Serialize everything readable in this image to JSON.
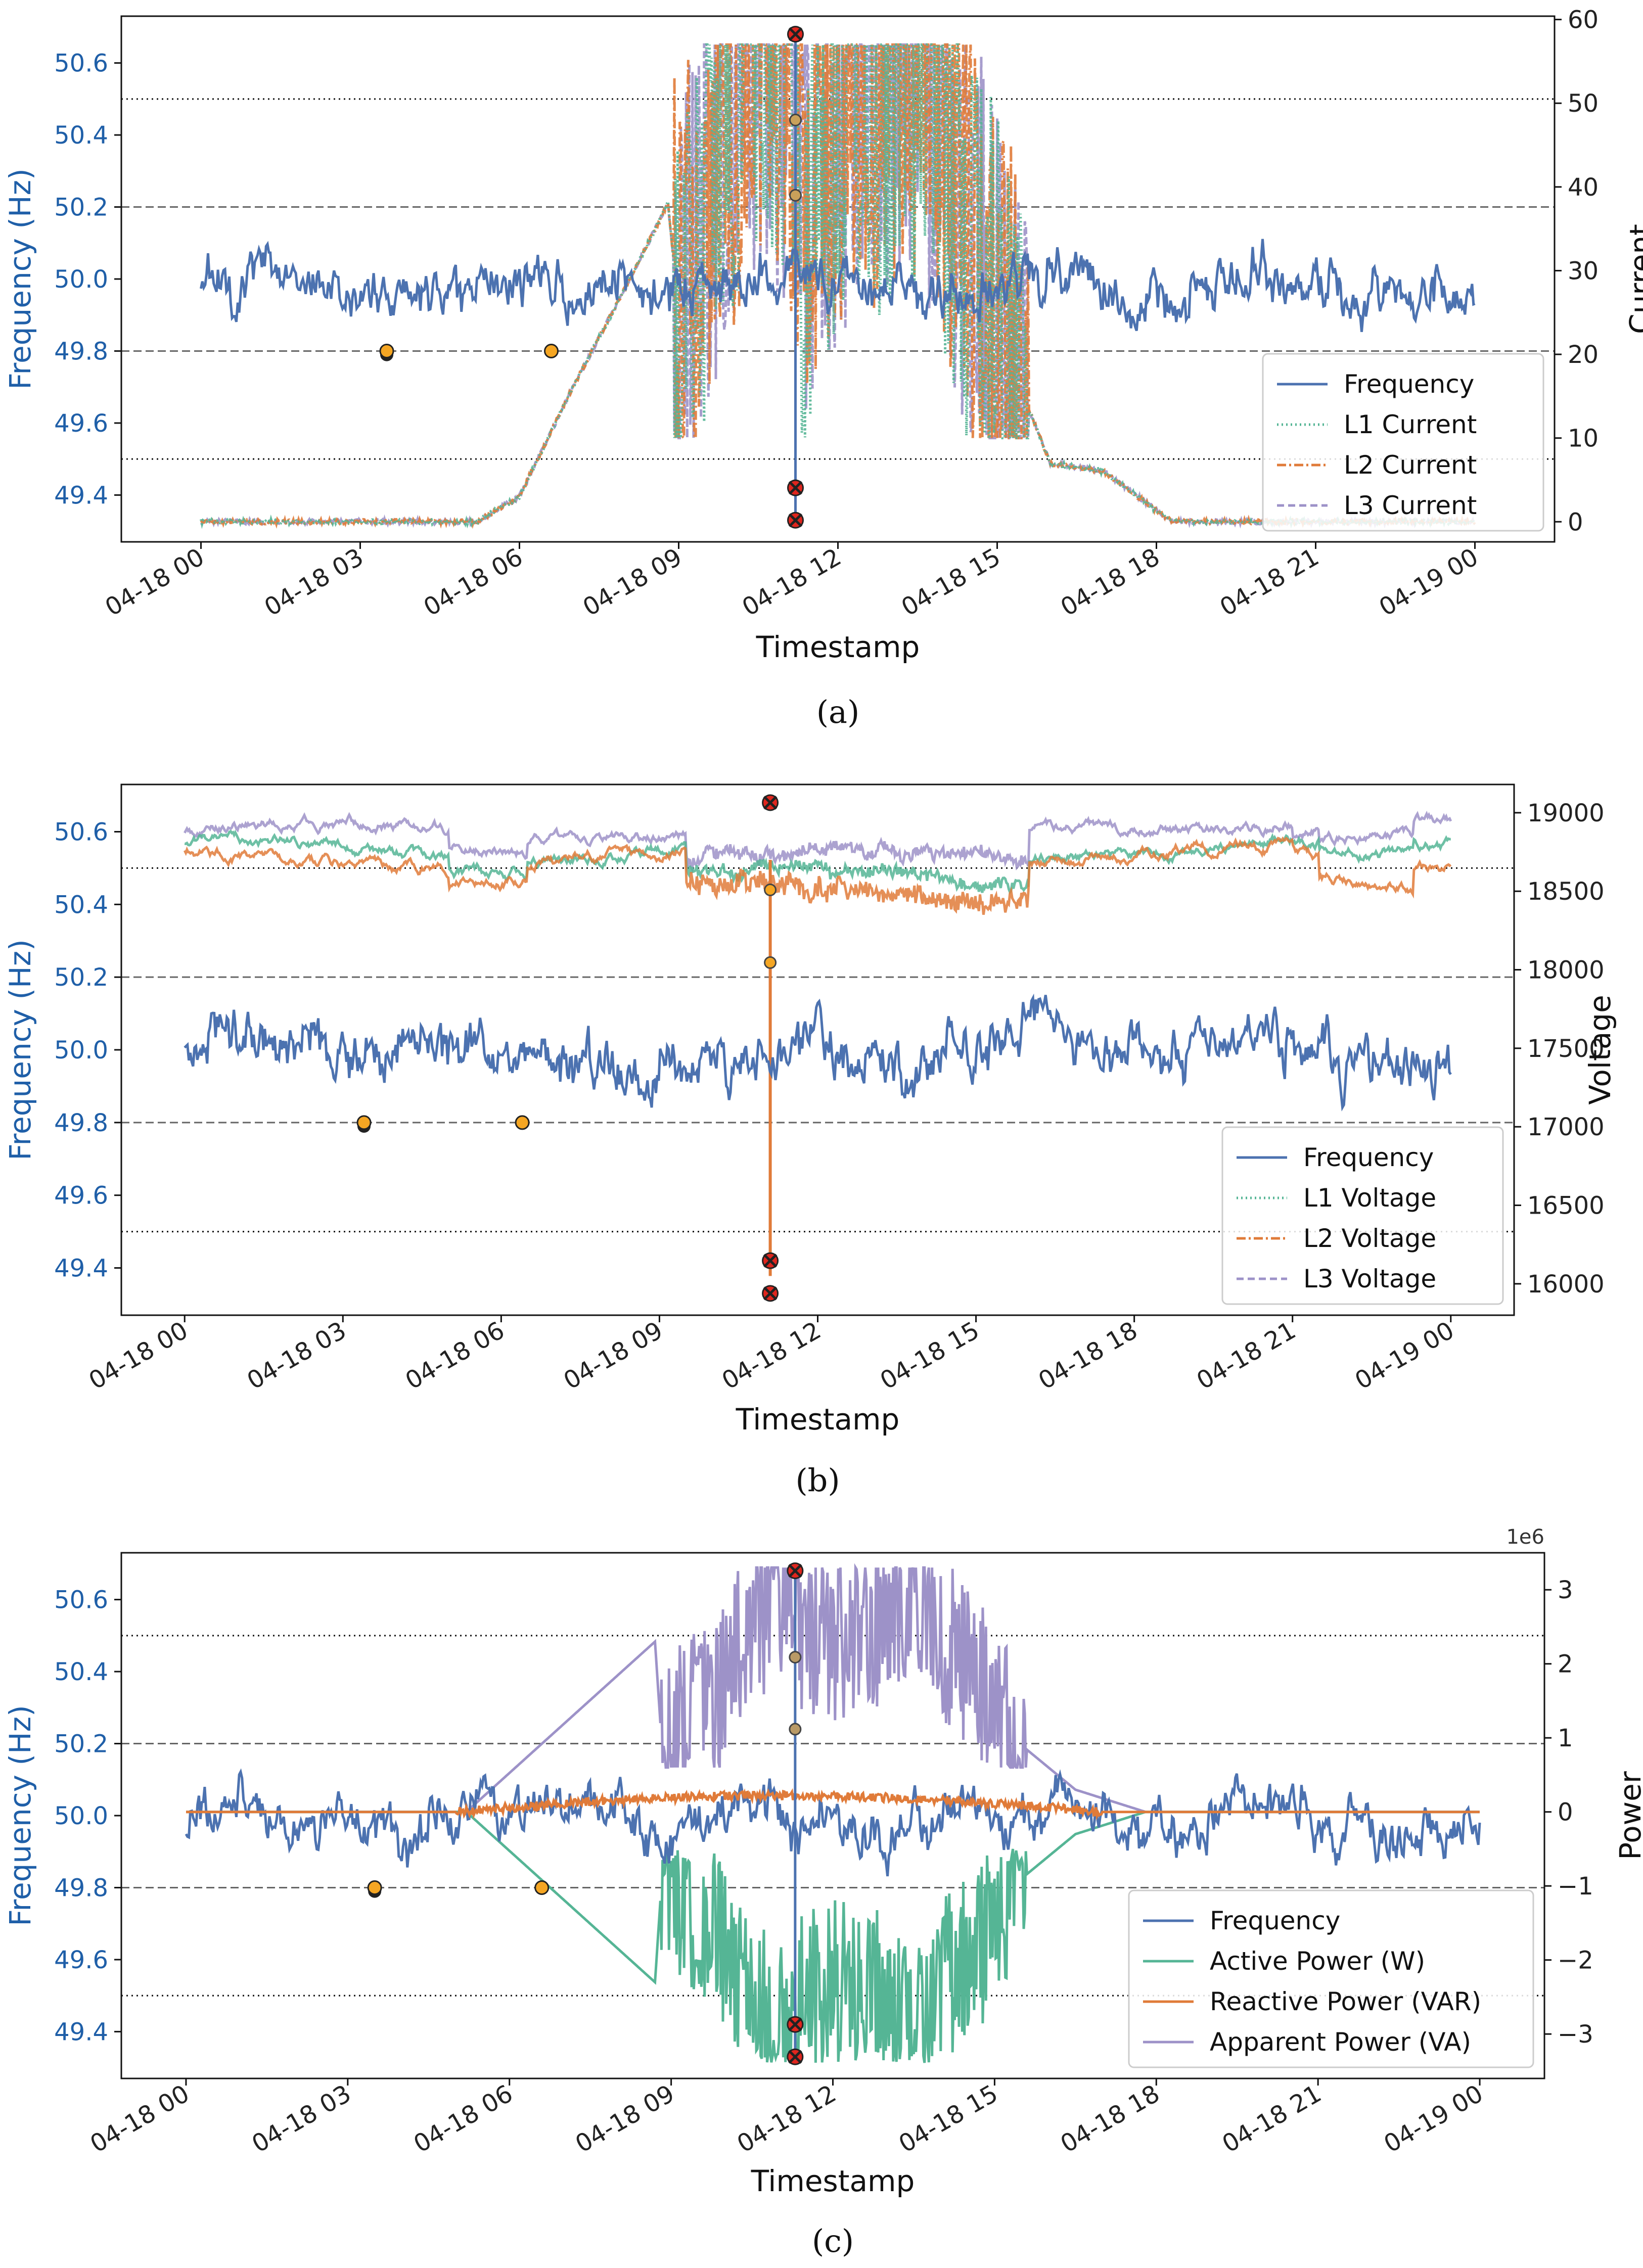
{
  "chart_data": [
    {
      "id": "a",
      "caption": "(a)",
      "type": "line",
      "xlabel": "Timestamp",
      "ylabel_left": "Frequency (Hz)",
      "ylabel_right": "Current",
      "x_ticks": [
        "04-18 00",
        "04-18 03",
        "04-18 06",
        "04-18 09",
        "04-18 12",
        "04-18 15",
        "04-18 18",
        "04-18 21",
        "04-19 00"
      ],
      "x_range_hours": [
        -1.5,
        25.5
      ],
      "ylim_left": [
        49.27,
        50.73
      ],
      "yticks_left": [
        "49.4",
        "49.6",
        "49.8",
        "50.0",
        "50.2",
        "50.4",
        "50.6"
      ],
      "ylim_right": [
        -2.4,
        60.4
      ],
      "yticks_right": [
        "0",
        "10",
        "20",
        "30",
        "40",
        "50",
        "60"
      ],
      "right_sci": "",
      "reference_lines": {
        "dotted": [
          49.5,
          50.5
        ],
        "dashed": [
          49.8,
          50.2
        ]
      },
      "legend": [
        "Frequency",
        "L1 Current",
        "L2 Current",
        "L3 Current"
      ],
      "legend_loc": "lower-right",
      "series_right_profile_hours": [
        0,
        5.2,
        6.0,
        7.0,
        8.0,
        8.8,
        9.0,
        9.8,
        10.5,
        11.2,
        11.3,
        12.0,
        13.5,
        14.5,
        15.5,
        16.0,
        17.0,
        18.3,
        24.0
      ],
      "series_right_profile_values": [
        0,
        0,
        3,
        16,
        28,
        38,
        25,
        45,
        55,
        50,
        35,
        47,
        55,
        35,
        15,
        7,
        6,
        0,
        0
      ],
      "markers": {
        "low_circles_hours": [
          3.5,
          6.6
        ],
        "event_hour": 11.2,
        "event_circles_right": [
          48,
          39
        ],
        "event_x_left": [
          50.68,
          49.42,
          49.33
        ]
      }
    },
    {
      "id": "b",
      "caption": "(b)",
      "type": "line",
      "xlabel": "Timestamp",
      "ylabel_left": "Frequency (Hz)",
      "ylabel_right": "Voltage",
      "x_ticks": [
        "04-18 00",
        "04-18 03",
        "04-18 06",
        "04-18 09",
        "04-18 12",
        "04-18 15",
        "04-18 18",
        "04-18 21",
        "04-19 00"
      ],
      "x_range_hours": [
        -1.2,
        25.2
      ],
      "ylim_left": [
        49.27,
        50.73
      ],
      "yticks_left": [
        "49.4",
        "49.6",
        "49.8",
        "50.0",
        "50.2",
        "50.4",
        "50.6"
      ],
      "ylim_right": [
        15800,
        19180
      ],
      "yticks_right": [
        "16000",
        "16500",
        "17000",
        "17500",
        "18000",
        "18500",
        "19000"
      ],
      "right_sci": "",
      "reference_lines": {
        "dotted": [
          49.5,
          50.5
        ],
        "dashed": [
          49.8,
          50.2
        ]
      },
      "legend": [
        "Frequency",
        "L1 Voltage",
        "L2 Voltage",
        "L3 Voltage"
      ],
      "legend_loc": "lower-right",
      "voltage_baseline": {
        "L1": 18760,
        "L2": 18700,
        "L3": 18880
      },
      "markers": {
        "low_circles_hours": [
          3.4,
          6.4
        ],
        "event_hour": 11.1,
        "event_circles_left": [
          50.44,
          50.24
        ],
        "event_x_left": [
          50.68,
          49.42,
          49.33
        ]
      }
    },
    {
      "id": "c",
      "caption": "(c)",
      "type": "line",
      "xlabel": "Timestamp",
      "ylabel_left": "Frequency (Hz)",
      "ylabel_right": "Power",
      "x_ticks": [
        "04-18 00",
        "04-18 03",
        "04-18 06",
        "04-18 09",
        "04-18 12",
        "04-18 15",
        "04-18 18",
        "04-18 21",
        "04-19 00"
      ],
      "x_range_hours": [
        -1.2,
        25.2
      ],
      "ylim_left": [
        49.27,
        50.73
      ],
      "yticks_left": [
        "49.4",
        "49.6",
        "49.8",
        "50.0",
        "50.2",
        "50.4",
        "50.6"
      ],
      "ylim_right": [
        -3.6,
        3.5
      ],
      "yticks_right": [
        "−3",
        "−2",
        "−1",
        "0",
        "1",
        "2",
        "3"
      ],
      "right_sci": "1e6",
      "reference_lines": {
        "dotted": [
          49.5,
          50.5
        ],
        "dashed": [
          49.8,
          50.2
        ]
      },
      "legend": [
        "Frequency",
        "Active Power (W)",
        "Reactive Power (VAR)",
        "Apparent Power (VA)"
      ],
      "legend_loc": "lower-right",
      "markers": {
        "low_circles_hours": [
          3.5,
          6.6
        ],
        "event_hour": 11.3,
        "event_circles_left": [
          50.44,
          50.24
        ],
        "event_x_left": [
          50.68,
          49.42,
          49.33
        ]
      }
    }
  ],
  "colors": {
    "frequency": "#4c72b0",
    "l1": "#55b595",
    "l2": "#e07b39",
    "l3": "#9d92c8",
    "active": "#55b595",
    "reactive": "#e07b39",
    "apparent": "#9d92c8",
    "freq_label": "#1f5fa8",
    "marker_circle": "#f5a623",
    "marker_x": "#e0261e"
  }
}
